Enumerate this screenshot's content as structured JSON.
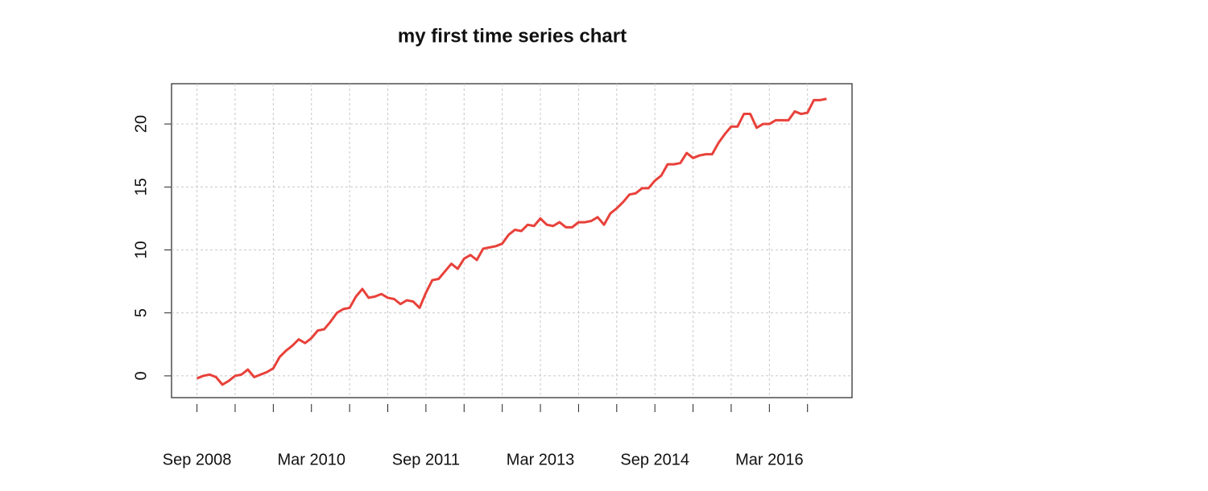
{
  "chart_data": {
    "type": "line",
    "title": "my first time series chart",
    "x": [
      "2008-09",
      "2008-10",
      "2008-11",
      "2008-12",
      "2009-01",
      "2009-02",
      "2009-03",
      "2009-04",
      "2009-05",
      "2009-06",
      "2009-07",
      "2009-08",
      "2009-09",
      "2009-10",
      "2009-11",
      "2009-12",
      "2010-01",
      "2010-02",
      "2010-03",
      "2010-04",
      "2010-05",
      "2010-06",
      "2010-07",
      "2010-08",
      "2010-09",
      "2010-10",
      "2010-11",
      "2010-12",
      "2011-01",
      "2011-02",
      "2011-03",
      "2011-04",
      "2011-05",
      "2011-06",
      "2011-07",
      "2011-08",
      "2011-09",
      "2011-10",
      "2011-11",
      "2011-12",
      "2012-01",
      "2012-02",
      "2012-03",
      "2012-04",
      "2012-05",
      "2012-06",
      "2012-07",
      "2012-08",
      "2012-09",
      "2012-10",
      "2012-11",
      "2012-12",
      "2013-01",
      "2013-02",
      "2013-03",
      "2013-04",
      "2013-05",
      "2013-06",
      "2013-07",
      "2013-08",
      "2013-09",
      "2013-10",
      "2013-11",
      "2013-12",
      "2014-01",
      "2014-02",
      "2014-03",
      "2014-04",
      "2014-05",
      "2014-06",
      "2014-07",
      "2014-08",
      "2014-09",
      "2014-10",
      "2014-11",
      "2014-12",
      "2015-01",
      "2015-02",
      "2015-03",
      "2015-04",
      "2015-05",
      "2015-06",
      "2015-07",
      "2015-08",
      "2015-09",
      "2015-10",
      "2015-11",
      "2015-12",
      "2016-01",
      "2016-02",
      "2016-03",
      "2016-04",
      "2016-05",
      "2016-06",
      "2016-07",
      "2016-08",
      "2016-09",
      "2016-10",
      "2016-11",
      "2016-12"
    ],
    "values": [
      -0.2,
      0.0,
      0.1,
      -0.1,
      -0.7,
      -0.4,
      0.0,
      0.1,
      0.5,
      -0.1,
      0.1,
      0.3,
      0.6,
      1.5,
      2.0,
      2.4,
      2.9,
      2.6,
      3.0,
      3.6,
      3.7,
      4.3,
      5.0,
      5.3,
      5.4,
      6.3,
      6.9,
      6.2,
      6.3,
      6.5,
      6.2,
      6.1,
      5.7,
      6.0,
      5.9,
      5.4,
      6.6,
      7.6,
      7.7,
      8.3,
      8.9,
      8.5,
      9.3,
      9.6,
      9.2,
      10.1,
      10.2,
      10.3,
      10.5,
      11.2,
      11.6,
      11.5,
      12.0,
      11.9,
      12.5,
      12.0,
      11.9,
      12.2,
      11.8,
      11.8,
      12.2,
      12.2,
      12.3,
      12.6,
      12.0,
      12.9,
      13.3,
      13.8,
      14.4,
      14.5,
      14.9,
      14.9,
      15.5,
      15.9,
      16.8,
      16.8,
      16.9,
      17.7,
      17.3,
      17.5,
      17.6,
      17.6,
      18.5,
      19.2,
      19.8,
      19.8,
      20.8,
      20.8,
      19.7,
      20.0,
      20.0,
      20.3,
      20.3,
      20.3,
      21.0,
      20.8,
      20.9,
      21.9,
      21.9,
      22.0
    ],
    "color": "#e8413a",
    "xlim": [
      "2008-05",
      "2017-04"
    ],
    "xticks": [
      {
        "value": "2008-09",
        "label": "Sep 2008"
      },
      {
        "value": "2009-03",
        "label": null
      },
      {
        "value": "2009-09",
        "label": null
      },
      {
        "value": "2010-03",
        "label": "Mar 2010"
      },
      {
        "value": "2010-09",
        "label": null
      },
      {
        "value": "2011-03",
        "label": null
      },
      {
        "value": "2011-09",
        "label": "Sep 2011"
      },
      {
        "value": "2012-03",
        "label": null
      },
      {
        "value": "2012-09",
        "label": null
      },
      {
        "value": "2013-03",
        "label": "Mar 2013"
      },
      {
        "value": "2013-09",
        "label": null
      },
      {
        "value": "2014-03",
        "label": null
      },
      {
        "value": "2014-09",
        "label": "Sep 2014"
      },
      {
        "value": "2015-03",
        "label": null
      },
      {
        "value": "2015-09",
        "label": null
      },
      {
        "value": "2016-03",
        "label": "Mar 2016"
      },
      {
        "value": "2016-09",
        "label": null
      }
    ],
    "ylim": [
      -1.73,
      23.2
    ],
    "yticks": [
      0,
      5,
      10,
      15,
      20
    ],
    "grid": true
  }
}
